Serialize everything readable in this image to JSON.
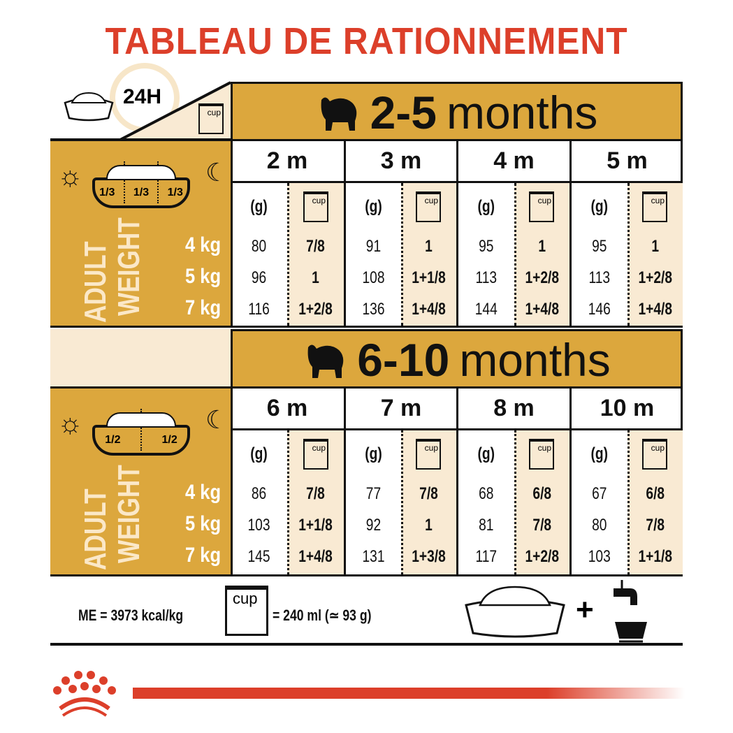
{
  "title": "TABLEAU DE RATIONNEMENT",
  "corner": {
    "period_label": "24H",
    "cup_label": "cup"
  },
  "column_headers": {
    "grams": "(g)",
    "cup": "cup"
  },
  "adult_weight_label": [
    "ADULT",
    "WEIGHT"
  ],
  "sections": [
    {
      "title_num": "2-5",
      "title_unit": "months",
      "meal_split": [
        "1/3",
        "1/3",
        "1/3"
      ],
      "weights": [
        "4 kg",
        "5 kg",
        "7 kg"
      ],
      "months": [
        {
          "label": "2 m",
          "grams": [
            "80",
            "96",
            "116"
          ],
          "cups": [
            "7/8",
            "1",
            "1+2/8"
          ]
        },
        {
          "label": "3 m",
          "grams": [
            "91",
            "108",
            "136"
          ],
          "cups": [
            "1",
            "1+1/8",
            "1+4/8"
          ]
        },
        {
          "label": "4 m",
          "grams": [
            "95",
            "113",
            "144"
          ],
          "cups": [
            "1",
            "1+2/8",
            "1+4/8"
          ]
        },
        {
          "label": "5 m",
          "grams": [
            "95",
            "113",
            "146"
          ],
          "cups": [
            "1",
            "1+2/8",
            "1+4/8"
          ]
        }
      ]
    },
    {
      "title_num": "6-10",
      "title_unit": "months",
      "meal_split": [
        "1/2",
        "1/2"
      ],
      "weights": [
        "4 kg",
        "5 kg",
        "7 kg"
      ],
      "months": [
        {
          "label": "6 m",
          "grams": [
            "86",
            "103",
            "145"
          ],
          "cups": [
            "7/8",
            "1+1/8",
            "1+4/8"
          ]
        },
        {
          "label": "7 m",
          "grams": [
            "77",
            "92",
            "131"
          ],
          "cups": [
            "7/8",
            "1",
            "1+3/8"
          ]
        },
        {
          "label": "8 m",
          "grams": [
            "68",
            "81",
            "117"
          ],
          "cups": [
            "6/8",
            "7/8",
            "1+2/8"
          ]
        },
        {
          "label": "10 m",
          "grams": [
            "67",
            "80",
            "103"
          ],
          "cups": [
            "6/8",
            "7/8",
            "1+1/8"
          ]
        }
      ]
    }
  ],
  "footer": {
    "energy": "ME = 3973 kcal/kg",
    "cup_label": "cup",
    "cup_equivalence": "= 240 ml (≃ 93 g)",
    "plus": "+"
  },
  "colors": {
    "title": "#DC3F2A",
    "gold": "#DCA73D",
    "cream": "#F9EAD3",
    "brand_red": "#DC3F2A"
  }
}
